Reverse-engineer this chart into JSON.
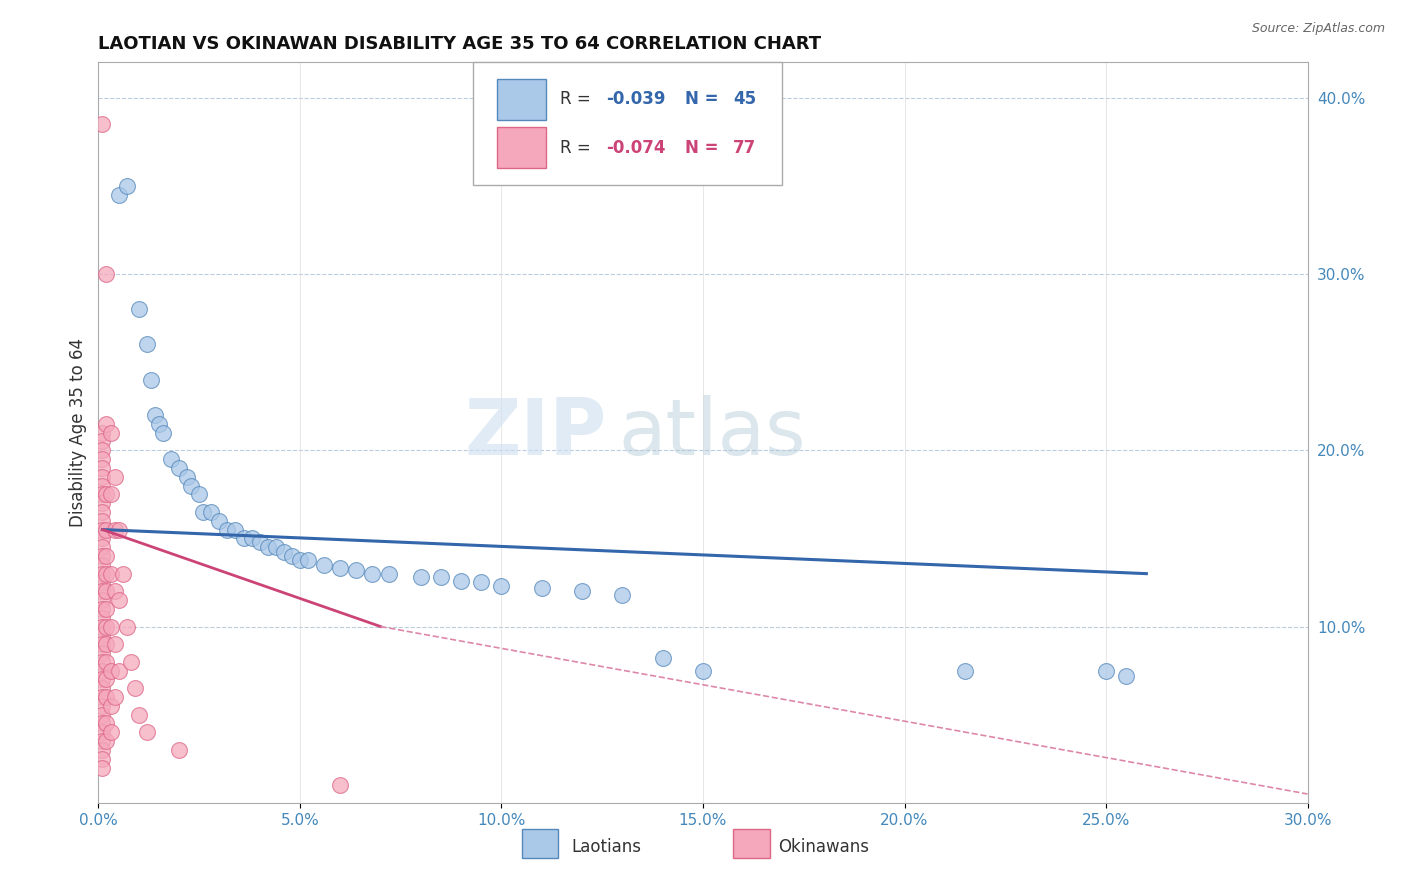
{
  "title": "LAOTIAN VS OKINAWAN DISABILITY AGE 35 TO 64 CORRELATION CHART",
  "source": "Source: ZipAtlas.com",
  "ylabel": "Disability Age 35 to 64",
  "ylabel_right_vals": [
    0.1,
    0.2,
    0.3,
    0.4
  ],
  "xlim": [
    0.0,
    0.3
  ],
  "ylim": [
    0.0,
    0.42
  ],
  "laotian_color": "#aac8e8",
  "okinawan_color": "#f5a8bc",
  "laotian_edge": "#5588bb",
  "okinawan_edge": "#dd6688",
  "trendline_laotian_color": "#3366aa",
  "trendline_okinawan_color": "#cc4477",
  "trendline_okinawan_dash": "#dd88aa",
  "watermark_color": "#cddff0",
  "laotian_points": [
    [
      0.005,
      0.345
    ],
    [
      0.007,
      0.35
    ],
    [
      0.01,
      0.28
    ],
    [
      0.012,
      0.26
    ],
    [
      0.013,
      0.24
    ],
    [
      0.014,
      0.22
    ],
    [
      0.015,
      0.215
    ],
    [
      0.016,
      0.21
    ],
    [
      0.018,
      0.195
    ],
    [
      0.02,
      0.19
    ],
    [
      0.022,
      0.185
    ],
    [
      0.023,
      0.18
    ],
    [
      0.025,
      0.175
    ],
    [
      0.026,
      0.165
    ],
    [
      0.028,
      0.165
    ],
    [
      0.03,
      0.16
    ],
    [
      0.032,
      0.155
    ],
    [
      0.034,
      0.155
    ],
    [
      0.036,
      0.15
    ],
    [
      0.038,
      0.15
    ],
    [
      0.04,
      0.148
    ],
    [
      0.042,
      0.145
    ],
    [
      0.044,
      0.145
    ],
    [
      0.046,
      0.142
    ],
    [
      0.048,
      0.14
    ],
    [
      0.05,
      0.138
    ],
    [
      0.052,
      0.138
    ],
    [
      0.056,
      0.135
    ],
    [
      0.06,
      0.133
    ],
    [
      0.064,
      0.132
    ],
    [
      0.068,
      0.13
    ],
    [
      0.072,
      0.13
    ],
    [
      0.08,
      0.128
    ],
    [
      0.085,
      0.128
    ],
    [
      0.09,
      0.126
    ],
    [
      0.095,
      0.125
    ],
    [
      0.1,
      0.123
    ],
    [
      0.11,
      0.122
    ],
    [
      0.12,
      0.12
    ],
    [
      0.13,
      0.118
    ],
    [
      0.14,
      0.082
    ],
    [
      0.15,
      0.075
    ],
    [
      0.215,
      0.075
    ],
    [
      0.25,
      0.075
    ],
    [
      0.255,
      0.072
    ]
  ],
  "okinawan_points": [
    [
      0.001,
      0.385
    ],
    [
      0.001,
      0.21
    ],
    [
      0.001,
      0.205
    ],
    [
      0.001,
      0.2
    ],
    [
      0.001,
      0.195
    ],
    [
      0.001,
      0.19
    ],
    [
      0.001,
      0.185
    ],
    [
      0.001,
      0.18
    ],
    [
      0.001,
      0.175
    ],
    [
      0.001,
      0.17
    ],
    [
      0.001,
      0.165
    ],
    [
      0.001,
      0.16
    ],
    [
      0.001,
      0.155
    ],
    [
      0.001,
      0.15
    ],
    [
      0.001,
      0.145
    ],
    [
      0.001,
      0.14
    ],
    [
      0.001,
      0.135
    ],
    [
      0.001,
      0.13
    ],
    [
      0.001,
      0.125
    ],
    [
      0.001,
      0.12
    ],
    [
      0.001,
      0.115
    ],
    [
      0.001,
      0.11
    ],
    [
      0.001,
      0.105
    ],
    [
      0.001,
      0.1
    ],
    [
      0.001,
      0.095
    ],
    [
      0.001,
      0.09
    ],
    [
      0.001,
      0.085
    ],
    [
      0.001,
      0.08
    ],
    [
      0.001,
      0.075
    ],
    [
      0.001,
      0.07
    ],
    [
      0.001,
      0.065
    ],
    [
      0.001,
      0.06
    ],
    [
      0.001,
      0.055
    ],
    [
      0.001,
      0.05
    ],
    [
      0.001,
      0.045
    ],
    [
      0.001,
      0.04
    ],
    [
      0.001,
      0.035
    ],
    [
      0.001,
      0.03
    ],
    [
      0.001,
      0.025
    ],
    [
      0.001,
      0.02
    ],
    [
      0.002,
      0.3
    ],
    [
      0.002,
      0.215
    ],
    [
      0.002,
      0.175
    ],
    [
      0.002,
      0.155
    ],
    [
      0.002,
      0.14
    ],
    [
      0.002,
      0.13
    ],
    [
      0.002,
      0.12
    ],
    [
      0.002,
      0.11
    ],
    [
      0.002,
      0.1
    ],
    [
      0.002,
      0.09
    ],
    [
      0.002,
      0.08
    ],
    [
      0.002,
      0.07
    ],
    [
      0.002,
      0.06
    ],
    [
      0.002,
      0.045
    ],
    [
      0.002,
      0.035
    ],
    [
      0.003,
      0.21
    ],
    [
      0.003,
      0.175
    ],
    [
      0.003,
      0.13
    ],
    [
      0.003,
      0.1
    ],
    [
      0.003,
      0.075
    ],
    [
      0.003,
      0.055
    ],
    [
      0.003,
      0.04
    ],
    [
      0.004,
      0.185
    ],
    [
      0.004,
      0.155
    ],
    [
      0.004,
      0.12
    ],
    [
      0.004,
      0.09
    ],
    [
      0.004,
      0.06
    ],
    [
      0.005,
      0.155
    ],
    [
      0.005,
      0.115
    ],
    [
      0.005,
      0.075
    ],
    [
      0.006,
      0.13
    ],
    [
      0.007,
      0.1
    ],
    [
      0.008,
      0.08
    ],
    [
      0.009,
      0.065
    ],
    [
      0.01,
      0.05
    ],
    [
      0.012,
      0.04
    ],
    [
      0.02,
      0.03
    ],
    [
      0.06,
      0.01
    ]
  ],
  "trendline_laotian": [
    [
      0.001,
      0.155
    ],
    [
      0.26,
      0.13
    ]
  ],
  "trendline_okinawan_solid": [
    [
      0.001,
      0.155
    ],
    [
      0.07,
      0.1
    ]
  ],
  "trendline_okinawan_dashed": [
    [
      0.07,
      0.1
    ],
    [
      0.3,
      0.005
    ]
  ]
}
